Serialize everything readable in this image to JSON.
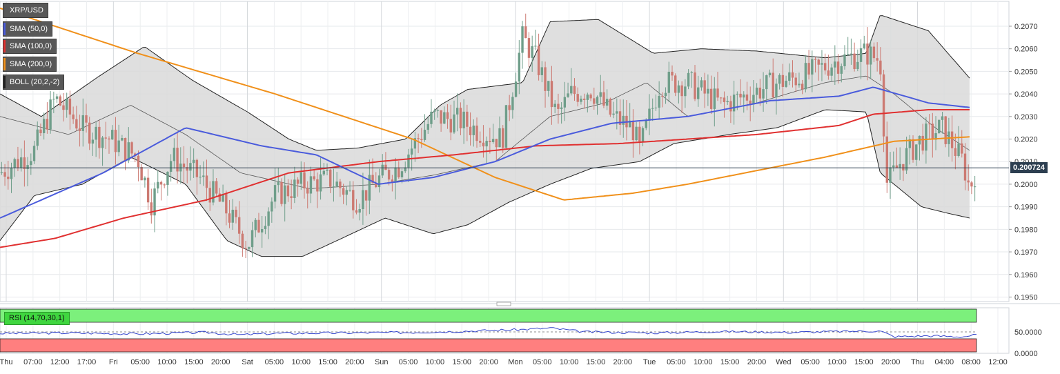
{
  "symbol": "XRP/USD",
  "legend": [
    {
      "label": "XRP/USD",
      "color": "#585858"
    },
    {
      "label": "SMA (50,0)",
      "color": "#4a5bdc"
    },
    {
      "label": "SMA (100,0)",
      "color": "#e03030"
    },
    {
      "label": "SMA (200,0)",
      "color": "#f0901a"
    },
    {
      "label": "BOLL (20,2,-2)",
      "color": "#222222"
    }
  ],
  "current_price_label": "0.200724",
  "rsi_label": "RSI (14,70,30,1)",
  "colors": {
    "up": "#6f9e8a",
    "down": "#cc7a72",
    "sma50": "#4a5bdc",
    "sma100": "#e03030",
    "sma200": "#f0901a",
    "boll": "#222222",
    "rsi_line": "#3344cc",
    "overbought_zone": "#7cf07c",
    "oversold_zone": "#ff7f7f"
  },
  "chart_data": [
    {
      "type": "candlestick",
      "title": "XRP/USD",
      "x_ticks": [
        "Thu",
        "07:00",
        "12:00",
        "17:00",
        "Fri",
        "05:00",
        "10:00",
        "15:00",
        "20:00",
        "Sat",
        "05:00",
        "10:00",
        "15:00",
        "20:00",
        "Sun",
        "05:00",
        "10:00",
        "15:00",
        "20:00",
        "Mon",
        "05:00",
        "10:00",
        "15:00",
        "20:00",
        "Tue",
        "05:00",
        "10:00",
        "15:00",
        "20:00",
        "Wed",
        "05:00",
        "10:00",
        "15:00",
        "20:00",
        "Thu",
        "04:00",
        "08:00",
        "12:00"
      ],
      "y_ticks": [
        "0.2070",
        "0.2060",
        "0.2050",
        "0.2040",
        "0.2030",
        "0.2020",
        "0.2010",
        "0.2000",
        "0.1990",
        "0.1980",
        "0.1970",
        "0.1960",
        "0.1950"
      ],
      "ylim": [
        0.1948,
        0.2081
      ],
      "grid": true,
      "legend_position": "top-left",
      "last_price": 0.200724,
      "ohlc_keypoints": [
        [
          0,
          0.2005
        ],
        [
          0.05,
          0.2015
        ],
        [
          0.08,
          0.2038
        ],
        [
          0.12,
          0.2025
        ],
        [
          0.16,
          0.202
        ],
        [
          0.2,
          0.2012
        ],
        [
          0.22,
          0.1992
        ],
        [
          0.25,
          0.2012
        ],
        [
          0.29,
          0.2003
        ],
        [
          0.33,
          0.1988
        ],
        [
          0.36,
          0.1973
        ],
        [
          0.4,
          0.1995
        ],
        [
          0.44,
          0.2
        ],
        [
          0.48,
          0.2002
        ],
        [
          0.52,
          0.1993
        ],
        [
          0.55,
          0.2002
        ],
        [
          0.58,
          0.2008
        ],
        [
          0.63,
          0.203
        ],
        [
          0.67,
          0.2028
        ],
        [
          0.7,
          0.2023
        ],
        [
          0.73,
          0.202
        ],
        [
          0.74,
          0.2035
        ],
        [
          0.76,
          0.2065
        ],
        [
          0.78,
          0.2055
        ],
        [
          0.81,
          0.203
        ],
        [
          0.83,
          0.204
        ],
        [
          0.86,
          0.2042
        ],
        [
          0.89,
          0.203
        ],
        [
          0.92,
          0.2025
        ],
        [
          0.93,
          0.2015
        ],
        [
          0.96,
          0.2045
        ],
        [
          1.0,
          0.2045
        ],
        [
          1.05,
          0.2035
        ],
        [
          1.09,
          0.204
        ],
        [
          1.13,
          0.2045
        ],
        [
          1.17,
          0.2048
        ],
        [
          1.22,
          0.2055
        ],
        [
          1.26,
          0.2058
        ],
        [
          1.28,
          0.2055
        ],
        [
          1.29,
          0.2
        ],
        [
          1.31,
          0.201
        ],
        [
          1.34,
          0.202
        ],
        [
          1.37,
          0.2025
        ],
        [
          1.4,
          0.201
        ],
        [
          1.41,
          0.1998
        ],
        [
          1.42,
          0.2007
        ]
      ],
      "sma50": [
        [
          0,
          0.1985
        ],
        [
          0.15,
          0.2005
        ],
        [
          0.27,
          0.2025
        ],
        [
          0.38,
          0.2017
        ],
        [
          0.46,
          0.2013
        ],
        [
          0.55,
          0.2
        ],
        [
          0.63,
          0.2003
        ],
        [
          0.72,
          0.201
        ],
        [
          0.8,
          0.202
        ],
        [
          0.89,
          0.2027
        ],
        [
          1.0,
          0.203
        ],
        [
          1.12,
          0.2037
        ],
        [
          1.22,
          0.2039
        ],
        [
          1.27,
          0.2043
        ],
        [
          1.35,
          0.2036
        ],
        [
          1.41,
          0.2034
        ]
      ],
      "sma100": [
        [
          0,
          0.1972
        ],
        [
          0.08,
          0.1976
        ],
        [
          0.18,
          0.1985
        ],
        [
          0.3,
          0.1993
        ],
        [
          0.42,
          0.2005
        ],
        [
          0.55,
          0.201
        ],
        [
          0.66,
          0.2013
        ],
        [
          0.78,
          0.2017
        ],
        [
          0.9,
          0.2018
        ],
        [
          1.0,
          0.202
        ],
        [
          1.1,
          0.2022
        ],
        [
          1.22,
          0.2026
        ],
        [
          1.27,
          0.2031
        ],
        [
          1.35,
          0.2033
        ],
        [
          1.41,
          0.2033
        ]
      ],
      "sma200": [
        [
          0,
          0.2078
        ],
        [
          0.2,
          0.2058
        ],
        [
          0.4,
          0.204
        ],
        [
          0.6,
          0.202
        ],
        [
          0.72,
          0.2003
        ],
        [
          0.82,
          0.1993
        ],
        [
          0.92,
          0.1996
        ],
        [
          1.0,
          0.2
        ],
        [
          1.1,
          0.2006
        ],
        [
          1.2,
          0.2012
        ],
        [
          1.3,
          0.2019
        ],
        [
          1.41,
          0.2021
        ]
      ],
      "boll_upper": [
        [
          0,
          0.204
        ],
        [
          0.06,
          0.203
        ],
        [
          0.14,
          0.2047
        ],
        [
          0.21,
          0.2061
        ],
        [
          0.28,
          0.2046
        ],
        [
          0.36,
          0.2032
        ],
        [
          0.42,
          0.202
        ],
        [
          0.46,
          0.2015
        ],
        [
          0.52,
          0.2016
        ],
        [
          0.59,
          0.202
        ],
        [
          0.64,
          0.2035
        ],
        [
          0.68,
          0.2042
        ],
        [
          0.76,
          0.2045
        ],
        [
          0.8,
          0.2072
        ],
        [
          0.87,
          0.2073
        ],
        [
          0.95,
          0.2058
        ],
        [
          1.02,
          0.206
        ],
        [
          1.1,
          0.2059
        ],
        [
          1.2,
          0.2056
        ],
        [
          1.26,
          0.2058
        ],
        [
          1.28,
          0.2075
        ],
        [
          1.35,
          0.2068
        ],
        [
          1.41,
          0.2047
        ]
      ],
      "boll_mid": [
        [
          0,
          0.203
        ],
        [
          0.1,
          0.2022
        ],
        [
          0.19,
          0.2035
        ],
        [
          0.27,
          0.2022
        ],
        [
          0.35,
          0.2005
        ],
        [
          0.45,
          0.1998
        ],
        [
          0.55,
          0.2
        ],
        [
          0.63,
          0.2004
        ],
        [
          0.72,
          0.201
        ],
        [
          0.8,
          0.203
        ],
        [
          0.88,
          0.2036
        ],
        [
          0.94,
          0.2045
        ],
        [
          1.0,
          0.203
        ],
        [
          1.1,
          0.2036
        ],
        [
          1.2,
          0.2045
        ],
        [
          1.26,
          0.2048
        ],
        [
          1.3,
          0.204
        ],
        [
          1.36,
          0.2025
        ],
        [
          1.41,
          0.2015
        ]
      ],
      "boll_lower": [
        [
          0,
          0.1975
        ],
        [
          0.05,
          0.1995
        ],
        [
          0.12,
          0.2
        ],
        [
          0.19,
          0.2012
        ],
        [
          0.27,
          0.2
        ],
        [
          0.33,
          0.1975
        ],
        [
          0.38,
          0.1968
        ],
        [
          0.44,
          0.1968
        ],
        [
          0.49,
          0.1975
        ],
        [
          0.56,
          0.1985
        ],
        [
          0.63,
          0.1978
        ],
        [
          0.68,
          0.1982
        ],
        [
          0.74,
          0.1992
        ],
        [
          0.8,
          0.2
        ],
        [
          0.86,
          0.2007
        ],
        [
          0.93,
          0.201
        ],
        [
          0.98,
          0.2018
        ],
        [
          1.06,
          0.2022
        ],
        [
          1.13,
          0.2025
        ],
        [
          1.2,
          0.2033
        ],
        [
          1.26,
          0.2032
        ],
        [
          1.28,
          0.2005
        ],
        [
          1.34,
          0.199
        ],
        [
          1.38,
          0.1987
        ],
        [
          1.41,
          0.1985
        ]
      ]
    },
    {
      "type": "line",
      "title": "RSI (14,70,30,1)",
      "y_ticks": [
        "50.0000",
        "0.0000"
      ],
      "overbought": 70,
      "oversold": 30,
      "rsi_keypoints": [
        [
          0,
          47
        ],
        [
          0.1,
          48
        ],
        [
          0.2,
          46
        ],
        [
          0.3,
          49
        ],
        [
          0.35,
          44
        ],
        [
          0.4,
          47
        ],
        [
          0.5,
          48
        ],
        [
          0.6,
          49
        ],
        [
          0.66,
          51
        ],
        [
          0.76,
          55
        ],
        [
          0.8,
          58
        ],
        [
          0.85,
          50
        ],
        [
          0.95,
          48
        ],
        [
          1.05,
          51
        ],
        [
          1.15,
          49
        ],
        [
          1.22,
          51
        ],
        [
          1.28,
          52
        ],
        [
          1.3,
          40
        ],
        [
          1.35,
          42
        ],
        [
          1.4,
          40
        ],
        [
          1.42,
          44
        ]
      ]
    }
  ]
}
